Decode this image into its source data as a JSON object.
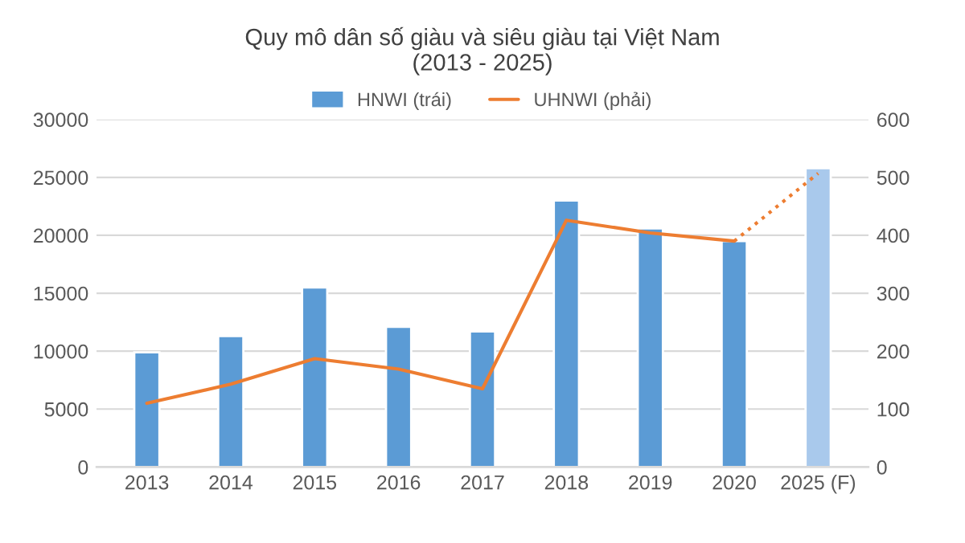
{
  "chart_data": {
    "type": "bar",
    "title": "Quy mô dân số giàu và siêu giàu tại Việt Nam\n(2013 - 2025)",
    "categories": [
      "2013",
      "2014",
      "2015",
      "2016",
      "2017",
      "2018",
      "2019",
      "2020",
      "2025 (F)"
    ],
    "series": [
      {
        "name": "HNWI (trái)",
        "color": "#5b9bd5",
        "colors": [
          "#5b9bd5",
          "#5b9bd5",
          "#5b9bd5",
          "#5b9bd5",
          "#5b9bd5",
          "#5b9bd5",
          "#5b9bd5",
          "#5b9bd5",
          "#a9c9ec"
        ],
        "values": [
          9900,
          11300,
          15500,
          12100,
          11700,
          23000,
          20600,
          19500,
          25800
        ]
      },
      {
        "name": "UHNWI (phải)",
        "type": "line",
        "axis": "y2",
        "color": "#ed7d31",
        "line_style": "solid",
        "values": [
          110,
          143,
          187,
          169,
          135,
          426,
          404,
          390,
          null
        ]
      },
      {
        "type": "line",
        "axis": "y2",
        "color": "#ed7d31",
        "line_style": "dotted",
        "values": [
          null,
          null,
          null,
          null,
          null,
          null,
          null,
          390,
          507
        ]
      }
    ],
    "ylim": [
      0,
      30000
    ],
    "yticks": [
      0,
      5000,
      10000,
      15000,
      20000,
      25000,
      30000
    ],
    "y2lim": [
      0,
      600
    ],
    "y2ticks": [
      0,
      100,
      200,
      300,
      400,
      500,
      600
    ],
    "grid": "y",
    "legend": "top"
  }
}
